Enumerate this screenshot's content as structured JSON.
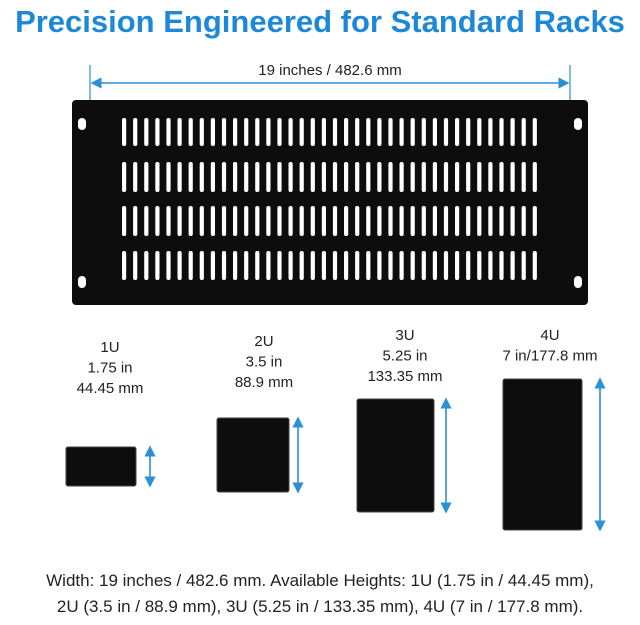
{
  "header": {
    "title": "Precision Engineered for Standard Racks"
  },
  "width_label": "19 inches / 482.6 mm",
  "panels": [
    {
      "label": [
        "1U",
        "1.75 in",
        "44.45 mm"
      ]
    },
    {
      "label": [
        "2U",
        "3.5 in",
        "88.9 mm"
      ]
    },
    {
      "label": [
        "3U",
        "5.25 in",
        "133.35 mm"
      ]
    },
    {
      "label": [
        "4U",
        "7 in/177.8 mm"
      ]
    }
  ],
  "caption": [
    "Width: 19 inches / 482.6 mm. Available Heights: 1U (1.75 in / 44.45 mm),",
    "2U (3.5 in / 88.9 mm), 3U (5.25 in / 133.35 mm), 4U (7 in / 177.8 mm)."
  ]
}
